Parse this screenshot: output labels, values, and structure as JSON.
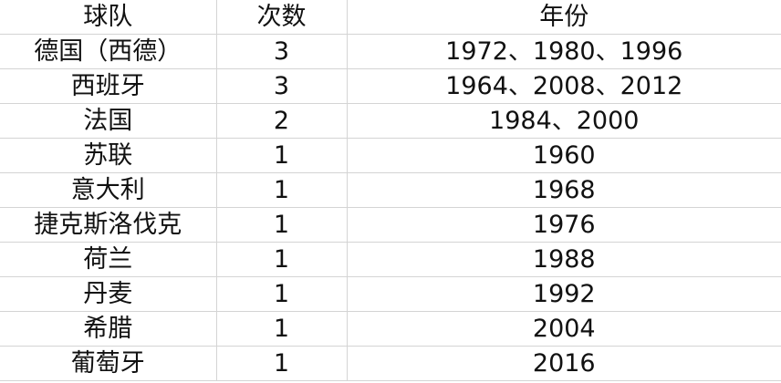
{
  "table": {
    "headers": [
      "球队",
      "次数",
      "年份"
    ],
    "rows": [
      [
        "德国（西德）",
        "3",
        "1972、1980、1996"
      ],
      [
        "西班牙",
        "3",
        "1964、2008、2012"
      ],
      [
        "法国",
        "2",
        "1984、2000"
      ],
      [
        "苏联",
        "1",
        "1960"
      ],
      [
        "意大利",
        "1",
        "1968"
      ],
      [
        "捷克斯洛伐克",
        "1",
        "1976"
      ],
      [
        "荷兰",
        "1",
        "1988"
      ],
      [
        "丹麦",
        "1",
        "1992"
      ],
      [
        "希腊",
        "1",
        "2004"
      ],
      [
        "葡萄牙",
        "1",
        "2016"
      ]
    ]
  }
}
